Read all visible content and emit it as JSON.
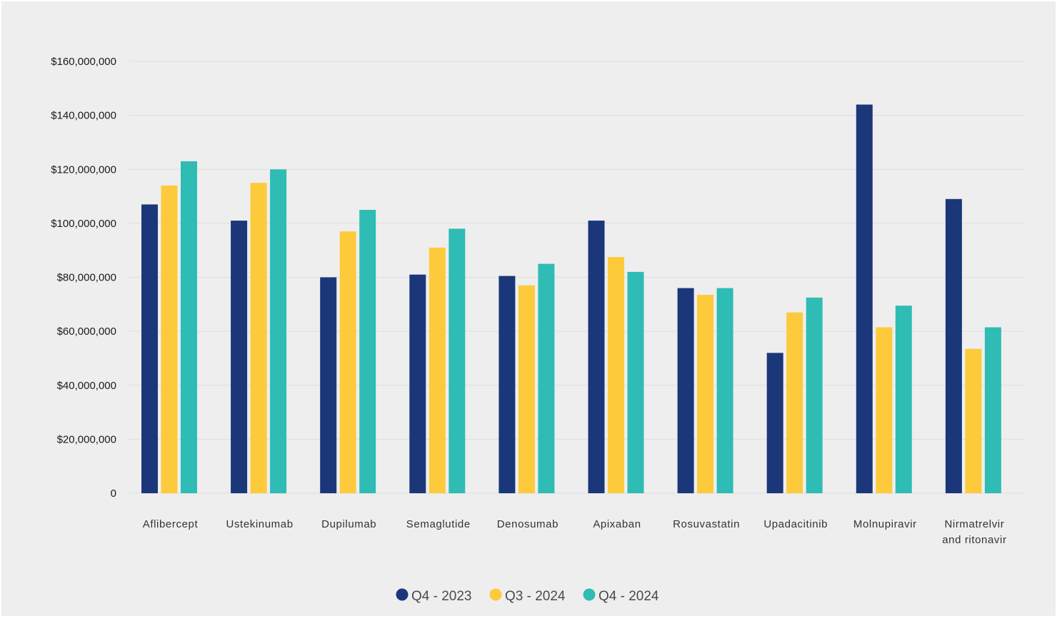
{
  "chart_data": {
    "type": "bar",
    "categories": [
      [
        "Aflibercept"
      ],
      [
        "Ustekinumab"
      ],
      [
        "Dupilumab"
      ],
      [
        "Semaglutide"
      ],
      [
        "Denosumab"
      ],
      [
        "Apixaban"
      ],
      [
        "Rosuvastatin"
      ],
      [
        "Upadacitinib"
      ],
      [
        "Molnupiravir"
      ],
      [
        "Nirmatrelvir",
        "and ritonavir"
      ]
    ],
    "series": [
      {
        "name": "Q4 - 2023",
        "color": "#1b377a",
        "values": [
          107000000,
          101000000,
          80000000,
          81000000,
          80500000,
          101000000,
          76000000,
          52000000,
          144000000,
          109000000
        ]
      },
      {
        "name": "Q3 - 2024",
        "color": "#fdca3c",
        "values": [
          114000000,
          115000000,
          97000000,
          91000000,
          77000000,
          87500000,
          73500000,
          67000000,
          61500000,
          53500000
        ]
      },
      {
        "name": "Q4 - 2024",
        "color": "#2ebcb4",
        "values": [
          123000000,
          120000000,
          105000000,
          98000000,
          85000000,
          82000000,
          76000000,
          72500000,
          69500000,
          61500000
        ]
      }
    ],
    "yticks": [
      {
        "value": 0,
        "label": "0"
      },
      {
        "value": 20000000,
        "label": "$20,000,000"
      },
      {
        "value": 40000000,
        "label": "$40,000,000"
      },
      {
        "value": 60000000,
        "label": "$60,000,000"
      },
      {
        "value": 80000000,
        "label": "$80,000,000"
      },
      {
        "value": 100000000,
        "label": "$100,000,000"
      },
      {
        "value": 120000000,
        "label": "$120,000,000"
      },
      {
        "value": 140000000,
        "label": "$140,000,000"
      },
      {
        "value": 160000000,
        "label": "$160,000,000"
      }
    ],
    "ylim": [
      0,
      160000000
    ],
    "title": "",
    "xlabel": "",
    "ylabel": "",
    "grid": true,
    "legend_position": "bottom-center",
    "colors": {
      "background": "#eeeeee",
      "gridline": "#dddddd",
      "axis_text": "#1a1a1a"
    }
  }
}
